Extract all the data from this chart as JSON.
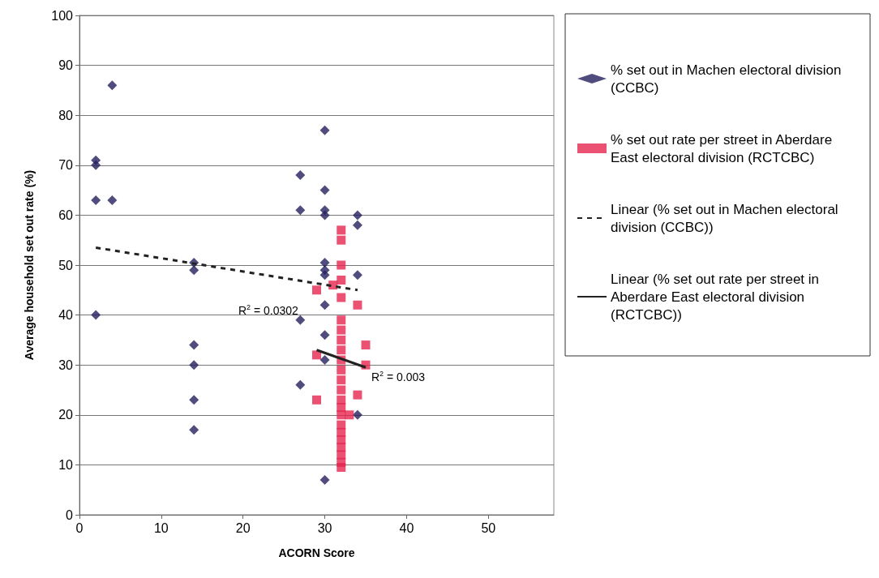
{
  "chart_data": {
    "type": "scatter",
    "xlabel": "ACORN Score",
    "ylabel": "Average household set out rate (%)",
    "xlim": [
      0,
      58
    ],
    "xticks": [
      0,
      10,
      20,
      30,
      40,
      50
    ],
    "ylim": [
      0,
      100
    ],
    "yticks": [
      0,
      10,
      20,
      30,
      40,
      50,
      60,
      70,
      80,
      90,
      100
    ],
    "grid": "y",
    "legend": "right",
    "series": [
      {
        "name": "% set out in Machen electoral division (CCBC)",
        "color": "#24205e",
        "marker": "diamond",
        "x": [
          2,
          2,
          2,
          2,
          4,
          4,
          14,
          14,
          14,
          14,
          14,
          14,
          27,
          27,
          27,
          27,
          30,
          30,
          30,
          30,
          30,
          30,
          30,
          30,
          30,
          30,
          30,
          34,
          34,
          34,
          34
        ],
        "values": [
          71,
          70,
          63,
          40,
          86,
          63,
          50.5,
          49,
          34,
          30,
          23,
          17,
          68,
          61,
          39,
          26,
          77,
          65,
          61,
          60,
          50.5,
          49,
          48,
          42,
          36,
          31,
          7,
          60,
          58,
          48,
          20
        ]
      },
      {
        "name": "% set out rate per street in Aberdare East electoral division (RCTCBC)",
        "color": "#e5254f",
        "marker": "square",
        "x": [
          32,
          32,
          32,
          32,
          32,
          32,
          32,
          32,
          32,
          32,
          32,
          32,
          32,
          32,
          32,
          32,
          32,
          32,
          32,
          32,
          32,
          32,
          32,
          29,
          29,
          29,
          31,
          34,
          34,
          35,
          35,
          33
        ],
        "values": [
          57,
          55,
          50,
          47,
          43.5,
          39,
          37,
          35,
          33,
          31,
          29,
          27,
          25,
          23,
          21.5,
          20,
          18,
          16.5,
          15,
          13.5,
          12,
          10.5,
          9.5,
          45,
          32,
          23,
          46,
          42,
          24,
          34,
          30,
          20
        ]
      },
      {
        "name": "Linear (% set out in Machen electoral division (CCBC))",
        "type": "line",
        "color": "#222222",
        "marker": "none",
        "line_style": "dashed",
        "x": [
          2,
          34
        ],
        "values": [
          53.5,
          45
        ]
      },
      {
        "name": "Linear (% set out rate per street in Aberdare East electoral division (RCTCBC))",
        "type": "line",
        "color": "#222222",
        "marker": "none",
        "line_style": "solid",
        "x": [
          29,
          35
        ],
        "values": [
          33,
          29.5
        ]
      }
    ],
    "annotations": [
      "R$^{2}$ = 0.0302",
      "R$^{2}$ = 0.003"
    ]
  }
}
